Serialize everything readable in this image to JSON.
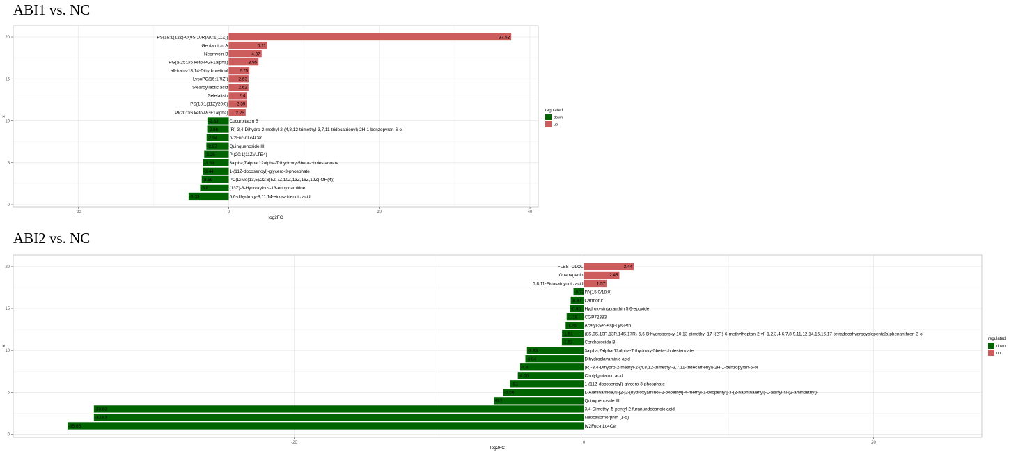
{
  "chart_data": [
    {
      "type": "bar",
      "orientation": "horizontal",
      "title": "ABI1 vs. NC",
      "xlabel": "log2FC",
      "ylabel": "x",
      "xlim": [
        -25,
        40
      ],
      "ylim": [
        0,
        20
      ],
      "x_ticks": [
        -20,
        0,
        20,
        40
      ],
      "y_ticks": [
        0,
        5,
        10,
        15,
        20
      ],
      "legend": {
        "title": "regulated",
        "entries": [
          {
            "label": "down",
            "color": "#006400"
          },
          {
            "label": "up",
            "color": "#CD5C5C"
          }
        ],
        "placement": "right"
      },
      "grid": true,
      "bars": [
        {
          "label": "PS(18:1(12Z)-O(9S,10R)/20:1(11Z))",
          "value": 37.52,
          "value_label": "37.52",
          "regulated": "up"
        },
        {
          "label": "Gentamicin A",
          "value": 5.11,
          "value_label": "5.11",
          "regulated": "up"
        },
        {
          "label": "Neomycin B",
          "value": 4.37,
          "value_label": "4.37",
          "regulated": "up"
        },
        {
          "label": "PG(a-25:0/6 keto-PGF1alpha)",
          "value": 3.95,
          "value_label": "3.95",
          "regulated": "up"
        },
        {
          "label": "all-trans-13,14-Dihydroretinol",
          "value": 2.75,
          "value_label": "2.75",
          "regulated": "up"
        },
        {
          "label": "LysoPC(16:1(9Z))",
          "value": 2.63,
          "value_label": "2.63",
          "regulated": "up"
        },
        {
          "label": "Stearoyllactic acid",
          "value": 2.62,
          "value_label": "2.62",
          "regulated": "up"
        },
        {
          "label": "Seletalisib",
          "value": 2.4,
          "value_label": "2.4",
          "regulated": "up"
        },
        {
          "label": "PS(18:1(11Z)/20:0)",
          "value": 2.39,
          "value_label": "2.39",
          "regulated": "up"
        },
        {
          "label": "PI(20:0/6 keto-PGF1alpha)",
          "value": 2.25,
          "value_label": "2.25",
          "regulated": "up"
        },
        {
          "label": "Cucurbitacin B",
          "value": -2.83,
          "value_label": "-2.83",
          "regulated": "down"
        },
        {
          "label": "(R)-3,4-Dihydro-2-methyl-2-(4,8,12-trimethyl-3,7,11-tridecatrienyl)-2H-1-benzopyran-6-ol",
          "value": -2.86,
          "value_label": "-2.86",
          "regulated": "down"
        },
        {
          "label": "IV2Fuc-nLc4Cer",
          "value": -2.94,
          "value_label": "-2.94",
          "regulated": "down"
        },
        {
          "label": "Quinquenoside III",
          "value": -2.97,
          "value_label": "-2.97",
          "regulated": "down"
        },
        {
          "label": "PI(20:1(11Z)/LTE4)",
          "value": -3.26,
          "value_label": "-3.26",
          "regulated": "down"
        },
        {
          "label": "3alpha,7alpha,12alpha-Trihydroxy-5beta-cholestanoate",
          "value": -3.38,
          "value_label": "-3.38",
          "regulated": "down"
        },
        {
          "label": "1-(11Z-docosenoyl)-glycero-3-phosphate",
          "value": -3.44,
          "value_label": "-3.44",
          "regulated": "down"
        },
        {
          "label": "PC(DiMe(13,5)/22:6(5Z,7Z,10Z,13Z,16Z,19Z)-OH(4))",
          "value": -3.59,
          "value_label": "-3.59",
          "regulated": "down"
        },
        {
          "label": "(13Z)-3-Hydroxyicos-13-enoylcarnitine",
          "value": -3.8,
          "value_label": "-3.8",
          "regulated": "down"
        },
        {
          "label": "5,6-dihydroxy-8,11,14-eicosatrienoic acid",
          "value": -5.33,
          "value_label": "-5.33",
          "regulated": "down"
        }
      ]
    },
    {
      "type": "bar",
      "orientation": "horizontal",
      "title": "ABI2 vs. NC",
      "xlabel": "log2FC",
      "ylabel": "x",
      "xlim": [
        -27.5,
        27.5
      ],
      "ylim": [
        0,
        20
      ],
      "x_ticks": [
        -20,
        0,
        20
      ],
      "y_ticks": [
        0,
        5,
        10,
        15,
        20
      ],
      "legend": {
        "title": "regulated",
        "entries": [
          {
            "label": "down",
            "color": "#006400"
          },
          {
            "label": "up",
            "color": "#CD5C5C"
          }
        ],
        "placement": "right"
      },
      "grid": true,
      "bars": [
        {
          "label": "FLESTOLOL",
          "value": 3.44,
          "value_label": "3.44",
          "regulated": "up"
        },
        {
          "label": "Ouabagenin",
          "value": 2.45,
          "value_label": "2.45",
          "regulated": "up"
        },
        {
          "label": "5,8,11-Eicosatriynoic acid",
          "value": 1.57,
          "value_label": "1.57",
          "regulated": "up"
        },
        {
          "label": "PA(15:0/18:0)",
          "value": -0.72,
          "value_label": "-0.72",
          "regulated": "down"
        },
        {
          "label": "Carmofur",
          "value": -0.91,
          "value_label": "-0.91",
          "regulated": "down"
        },
        {
          "label": "Hydroxysintaxanthin 5,6-epoxide",
          "value": -0.96,
          "value_label": "-0.96",
          "regulated": "down"
        },
        {
          "label": "CGP72383",
          "value": -1.19,
          "value_label": "-1.19",
          "regulated": "down"
        },
        {
          "label": "Acetyl-Ser-Asp-Lys-Pro",
          "value": -1.26,
          "value_label": "-1.26",
          "regulated": "down"
        },
        {
          "label": "(8S,9S,10R,13R,14S,17R)-5,6-Dihydroperoxy-10,13-dimethyl-17-[(2R)-6-methylheptan-2-yl]-1,2,3,4,6,7,8,9,11,12,14,15,16,17-tetradecahydrocyclopenta[a]phenanthren-3-ol",
          "value": -1.51,
          "value_label": "-1.51",
          "regulated": "down"
        },
        {
          "label": "Corchoroside B",
          "value": -1.52,
          "value_label": "-1.52",
          "regulated": "down"
        },
        {
          "label": "3alpha,7alpha,12alpha-Trihydroxy-5beta-cholestanoate",
          "value": -3.93,
          "value_label": "-3.93",
          "regulated": "down"
        },
        {
          "label": "Dihydroclavaminic acid",
          "value": -4.04,
          "value_label": "-4.04",
          "regulated": "down"
        },
        {
          "label": "(R)-3,4-Dihydro-2-methyl-2-(4,8,12-trimethyl-3,7,11-tridecatrienyl)-2H-1-benzopyran-6-ol",
          "value": -4.4,
          "value_label": "-4.4",
          "regulated": "down"
        },
        {
          "label": "Cholylglutamic acid",
          "value": -4.56,
          "value_label": "-4.56",
          "regulated": "down"
        },
        {
          "label": "1-(11Z-docosenoyl)-glycero-3-phosphate",
          "value": -5.1,
          "value_label": "-5.1",
          "regulated": "down"
        },
        {
          "label": "L-Alaninamide,N-[2-[2-(hydroxyamino)-2-oxoethyl]-4-methyl-1-oxopentyl]-3-(2-naphthalenyl)-L-alanyl-N-(2-aminoethyl)-",
          "value": -5.56,
          "value_label": "-5.56",
          "regulated": "down"
        },
        {
          "label": "Quinquenoside III",
          "value": -6.2,
          "value_label": "-6.2",
          "regulated": "down"
        },
        {
          "label": "3,4-Dimethyl-5-pentyl-2-furanundecanoic acid",
          "value": -33.83,
          "value_label": "-33.83",
          "regulated": "down"
        },
        {
          "label": "Neocasomorphin (1-5)",
          "value": -33.83,
          "value_label": "-33.83",
          "regulated": "down"
        },
        {
          "label": "IV2Fuc-nLc4Cer",
          "value": -35.65,
          "value_label": "-35.65",
          "regulated": "down"
        }
      ]
    }
  ]
}
